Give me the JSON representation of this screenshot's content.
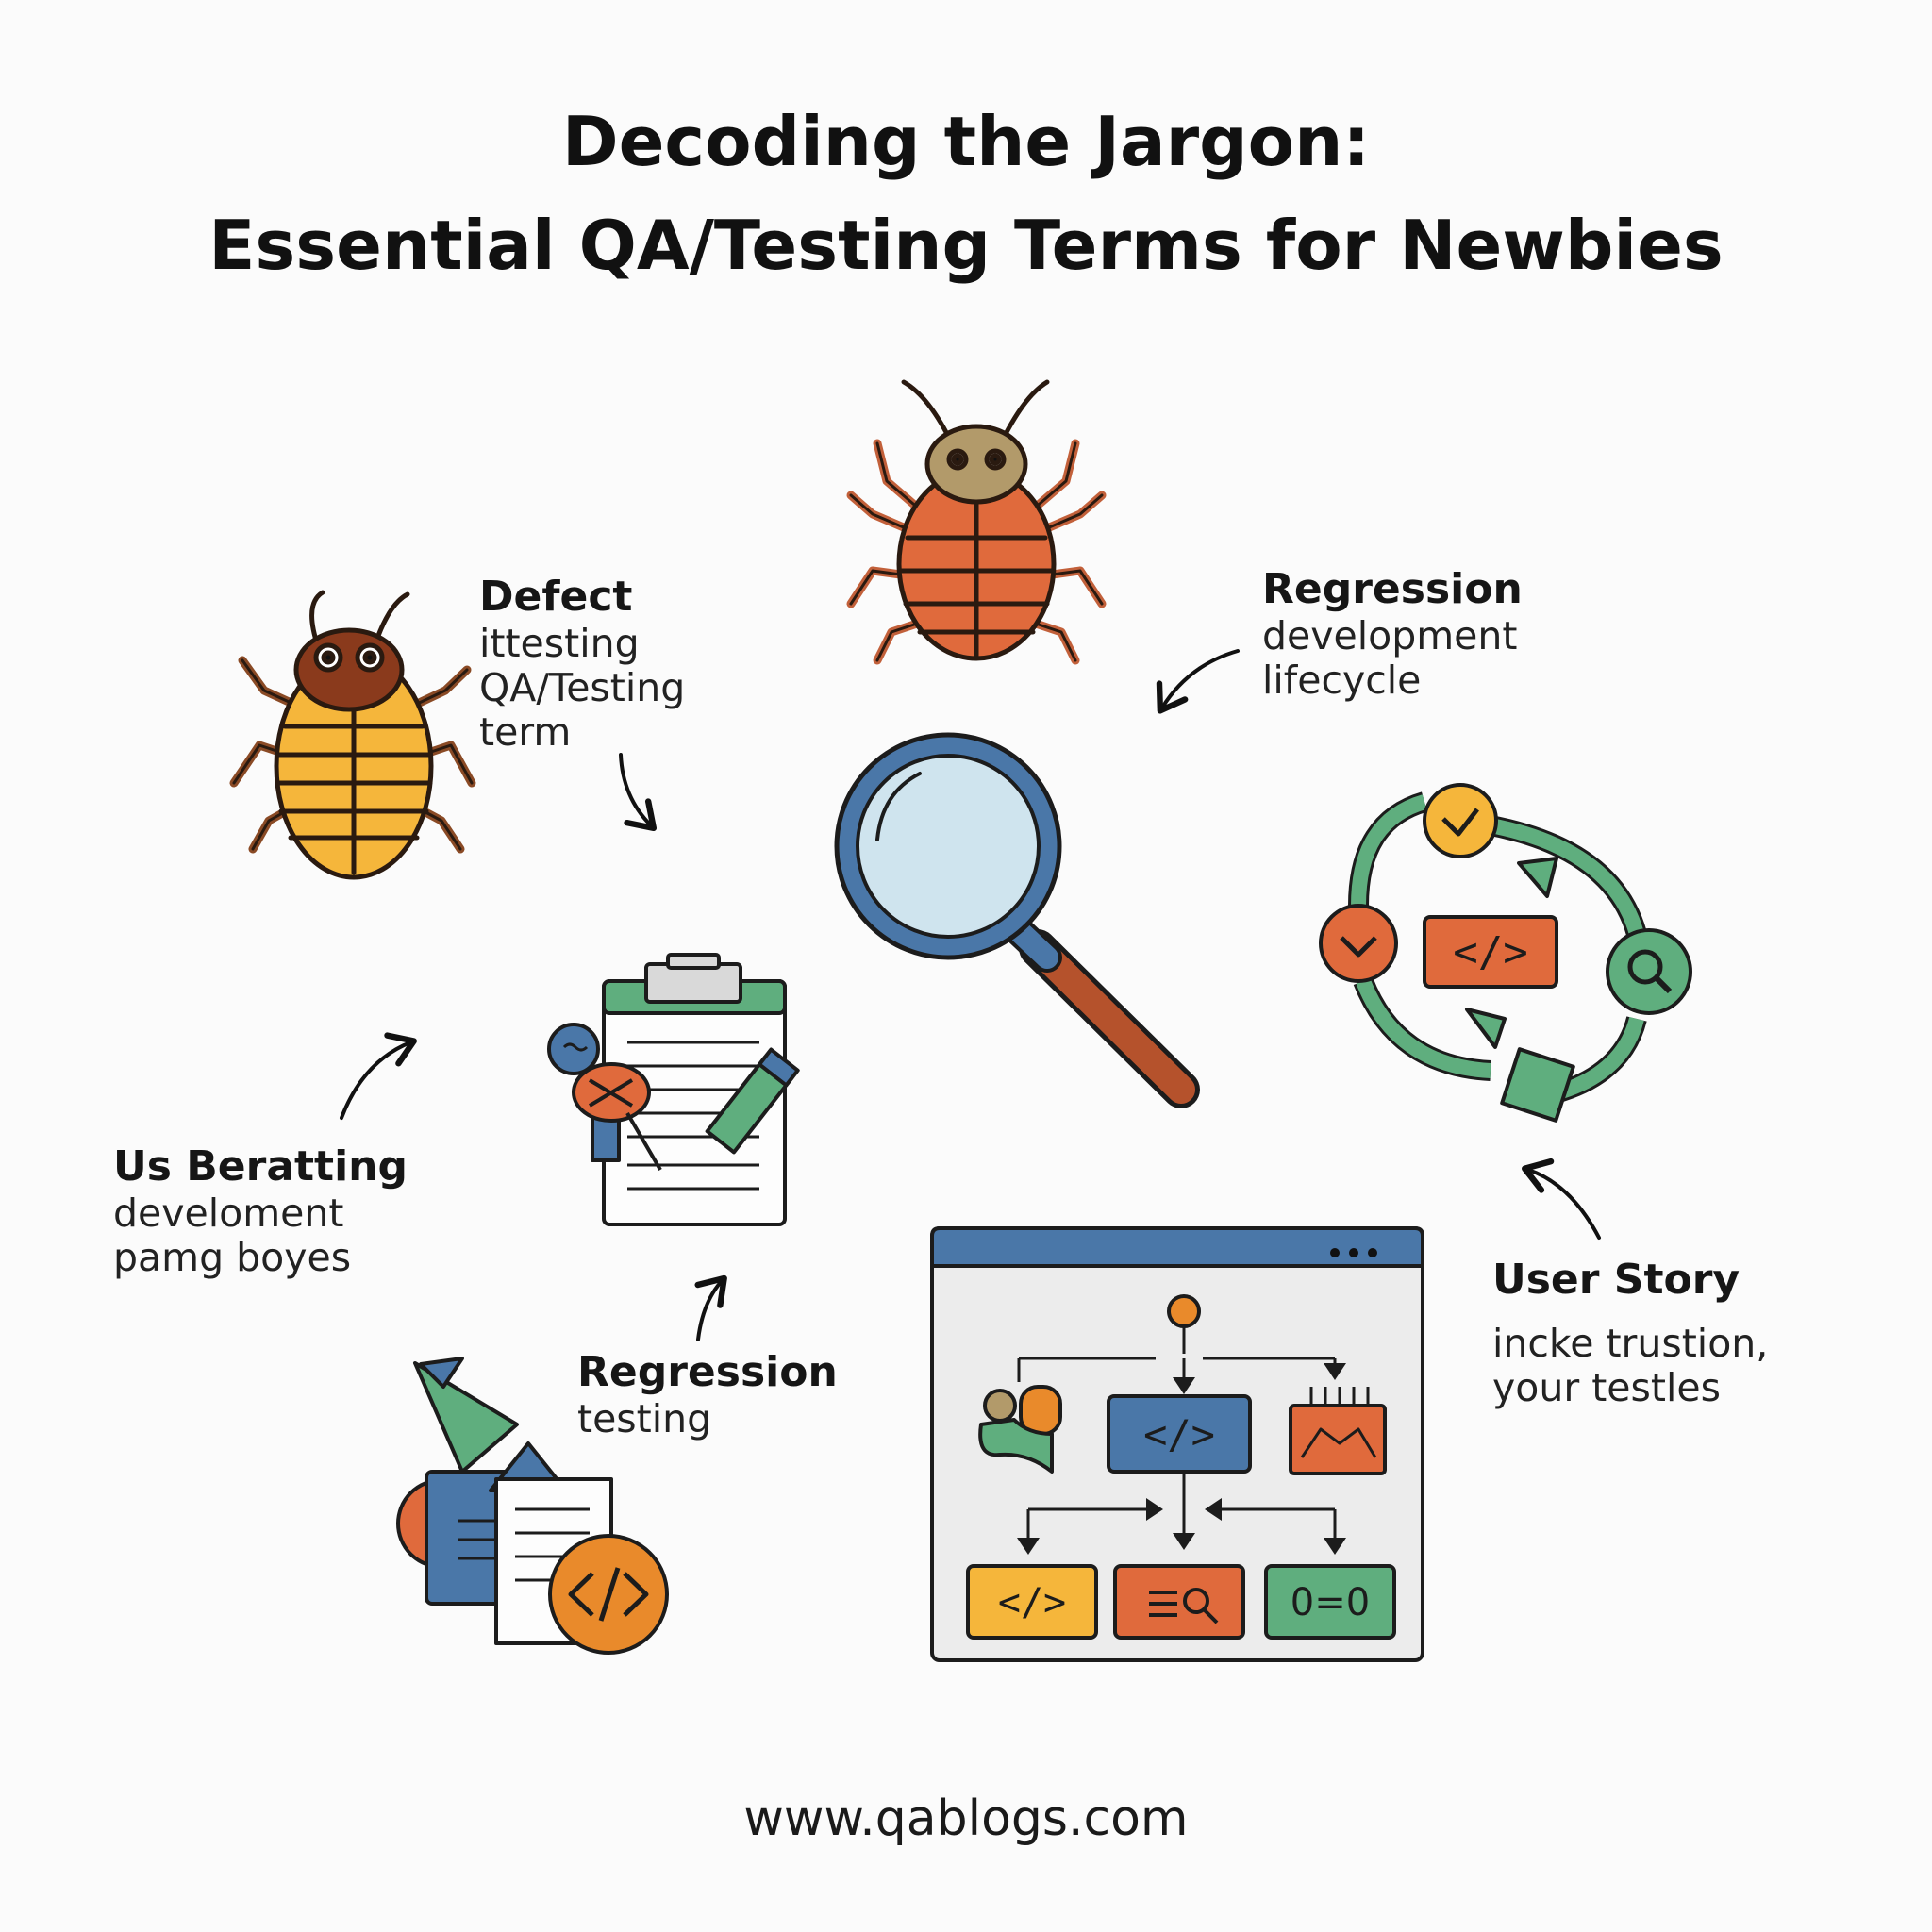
{
  "title": {
    "line1": "Decoding the Jargon:",
    "line2": "Essential QA/Testing Terms for Newbies"
  },
  "labels": {
    "defect": {
      "heading": "Defect",
      "lines": [
        "ittesting",
        "QA/Testing",
        "term"
      ]
    },
    "regression_top": {
      "heading": "Regression",
      "lines": [
        "development",
        "lifecycle"
      ]
    },
    "us_beratting": {
      "heading": "Us Beratting",
      "lines": [
        "develoment",
        "pamg boyes"
      ]
    },
    "regression_testing": {
      "heading": "Regression",
      "lines": [
        "testing"
      ]
    },
    "user_story": {
      "heading": "User Story",
      "lines": [
        "incke trustion,",
        "your testles"
      ]
    }
  },
  "icons": {
    "browser_window": {
      "code_glyph": "</>",
      "equals_glyph": "0=0"
    },
    "cycle_center_glyph": "</>"
  },
  "footer": {
    "url": "www.qablogs.com"
  },
  "colors": {
    "orange": "#e06a3c",
    "yellow": "#f5b63b",
    "blue": "#4a77a8",
    "green": "#5fae7e",
    "outline": "#1c1c1c",
    "lens": "#cfe4ee",
    "handle": "#b5522c"
  }
}
